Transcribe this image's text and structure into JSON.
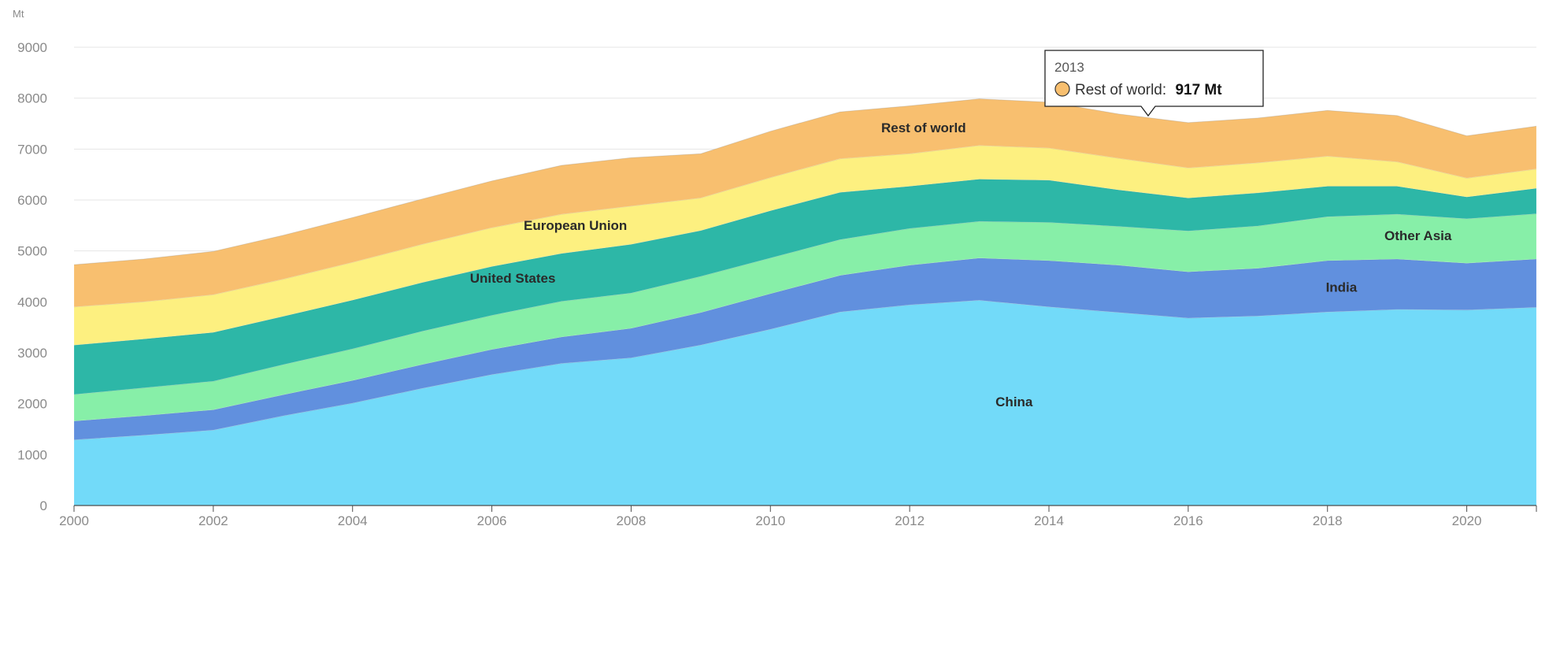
{
  "chart_data": {
    "type": "area",
    "stacked": true,
    "y_unit": "Mt",
    "ylim": [
      0,
      9000
    ],
    "y_ticks": [
      0,
      1000,
      2000,
      3000,
      4000,
      5000,
      6000,
      7000,
      8000,
      9000
    ],
    "x_ticks": [
      2000,
      2002,
      2004,
      2006,
      2008,
      2010,
      2012,
      2014,
      2016,
      2018,
      2020
    ],
    "xlim": [
      2000,
      2021
    ],
    "grid": true,
    "x": [
      2000,
      2001,
      2002,
      2003,
      2004,
      2005,
      2006,
      2007,
      2008,
      2009,
      2010,
      2011,
      2012,
      2013,
      2014,
      2015,
      2016,
      2017,
      2018,
      2019,
      2020,
      2021
    ],
    "series": [
      {
        "name": "China",
        "color": "#72daf9",
        "values": [
          1290,
          1380,
          1480,
          1760,
          2010,
          2300,
          2570,
          2790,
          2900,
          3150,
          3460,
          3800,
          3940,
          4030,
          3900,
          3790,
          3680,
          3720,
          3800,
          3850,
          3840,
          3890
        ]
      },
      {
        "name": "India",
        "color": "#6190de",
        "values": [
          370,
          385,
          400,
          415,
          445,
          470,
          495,
          520,
          580,
          640,
          700,
          720,
          780,
          830,
          910,
          930,
          910,
          940,
          1010,
          990,
          920,
          950
        ]
      },
      {
        "name": "Other Asia",
        "color": "#87efa8",
        "values": [
          520,
          545,
          560,
          590,
          620,
          650,
          670,
          700,
          690,
          710,
          700,
          700,
          720,
          720,
          750,
          760,
          800,
          830,
          860,
          880,
          870,
          890
        ]
      },
      {
        "name": "United States",
        "color": "#2db7a7",
        "values": [
          970,
          960,
          960,
          950,
          960,
          960,
          960,
          940,
          960,
          900,
          930,
          930,
          830,
          830,
          830,
          720,
          650,
          650,
          600,
          550,
          430,
          500
        ]
      },
      {
        "name": "European Union",
        "color": "#fdf080",
        "values": [
          750,
          730,
          740,
          730,
          740,
          750,
          760,
          770,
          750,
          640,
          650,
          660,
          640,
          660,
          630,
          620,
          590,
          590,
          590,
          480,
          370,
          380
        ]
      },
      {
        "name": "Rest of world",
        "color": "#f8bf6f",
        "values": [
          830,
          840,
          850,
          860,
          880,
          890,
          920,
          960,
          950,
          870,
          910,
          920,
          940,
          917,
          900,
          870,
          890,
          880,
          900,
          910,
          830,
          840
        ]
      }
    ],
    "series_labels": [
      {
        "series": "China",
        "text": "China",
        "at_x": 2013.5,
        "at_y": 1950
      },
      {
        "series": "India",
        "text": "India",
        "at_x": 2018.2,
        "at_y": 4200
      },
      {
        "series": "Other Asia",
        "text": "Other Asia",
        "at_x": 2019.3,
        "at_y": 5210
      },
      {
        "series": "United States",
        "text": "United States",
        "at_x": 2006.3,
        "at_y": 4380
      },
      {
        "series": "European Union",
        "text": "European Union",
        "at_x": 2007.2,
        "at_y": 5410
      },
      {
        "series": "Rest of world",
        "text": "Rest of world",
        "at_x": 2012.2,
        "at_y": 7330
      }
    ],
    "tooltip": {
      "year": "2013",
      "series": "Rest of world",
      "label": "Rest of world:",
      "value": "917 Mt",
      "color": "#f8bf6f"
    }
  }
}
